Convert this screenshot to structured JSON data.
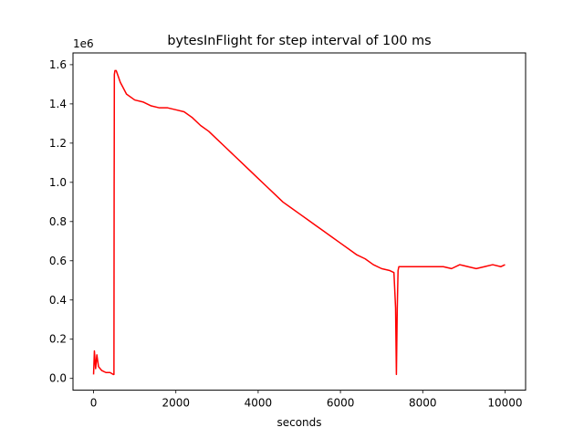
{
  "chart_data": {
    "type": "line",
    "title": "bytesInFlight for step interval of 100 ms",
    "xlabel": "seconds",
    "ylabel": "",
    "y_offset_label": "1e6",
    "xlim": [
      -500,
      10500
    ],
    "ylim": [
      -0.06,
      1.66
    ],
    "x_ticks": [
      0,
      2000,
      4000,
      6000,
      8000,
      10000
    ],
    "x_tick_labels": [
      "0",
      "2000",
      "4000",
      "6000",
      "8000",
      "10000"
    ],
    "y_ticks": [
      0.0,
      0.2,
      0.4,
      0.6,
      0.8,
      1.0,
      1.2,
      1.4,
      1.6
    ],
    "y_tick_labels": [
      "0.0",
      "0.2",
      "0.4",
      "0.6",
      "0.8",
      "1.0",
      "1.2",
      "1.4",
      "1.6"
    ],
    "grid": false,
    "series": [
      {
        "color": "#ff0000",
        "x": [
          0,
          20,
          50,
          80,
          120,
          200,
          300,
          400,
          480,
          495,
          500,
          502,
          505,
          520,
          550,
          600,
          650,
          700,
          800,
          1000,
          1200,
          1400,
          1600,
          1800,
          2000,
          2200,
          2400,
          2600,
          2800,
          3000,
          3200,
          3400,
          3600,
          3800,
          4000,
          4200,
          4400,
          4600,
          4800,
          5000,
          5200,
          5400,
          5600,
          5800,
          6000,
          6200,
          6400,
          6600,
          6800,
          7000,
          7200,
          7300,
          7340,
          7360,
          7380,
          7400,
          7420,
          7500,
          7700,
          7900,
          8100,
          8300,
          8500,
          8700,
          8900,
          9100,
          9300,
          9500,
          9700,
          9900,
          10000
        ],
        "y": [
          0.02,
          0.14,
          0.05,
          0.12,
          0.06,
          0.04,
          0.03,
          0.03,
          0.02,
          0.02,
          0.98,
          1.14,
          1.55,
          1.57,
          1.57,
          1.54,
          1.51,
          1.49,
          1.45,
          1.42,
          1.41,
          1.39,
          1.38,
          1.38,
          1.37,
          1.36,
          1.33,
          1.29,
          1.26,
          1.22,
          1.18,
          1.14,
          1.1,
          1.06,
          1.02,
          0.98,
          0.94,
          0.9,
          0.87,
          0.84,
          0.81,
          0.78,
          0.75,
          0.72,
          0.69,
          0.66,
          0.63,
          0.61,
          0.58,
          0.56,
          0.55,
          0.54,
          0.36,
          0.02,
          0.35,
          0.55,
          0.57,
          0.57,
          0.57,
          0.57,
          0.57,
          0.57,
          0.57,
          0.56,
          0.58,
          0.57,
          0.56,
          0.57,
          0.58,
          0.57,
          0.58
        ]
      }
    ]
  }
}
